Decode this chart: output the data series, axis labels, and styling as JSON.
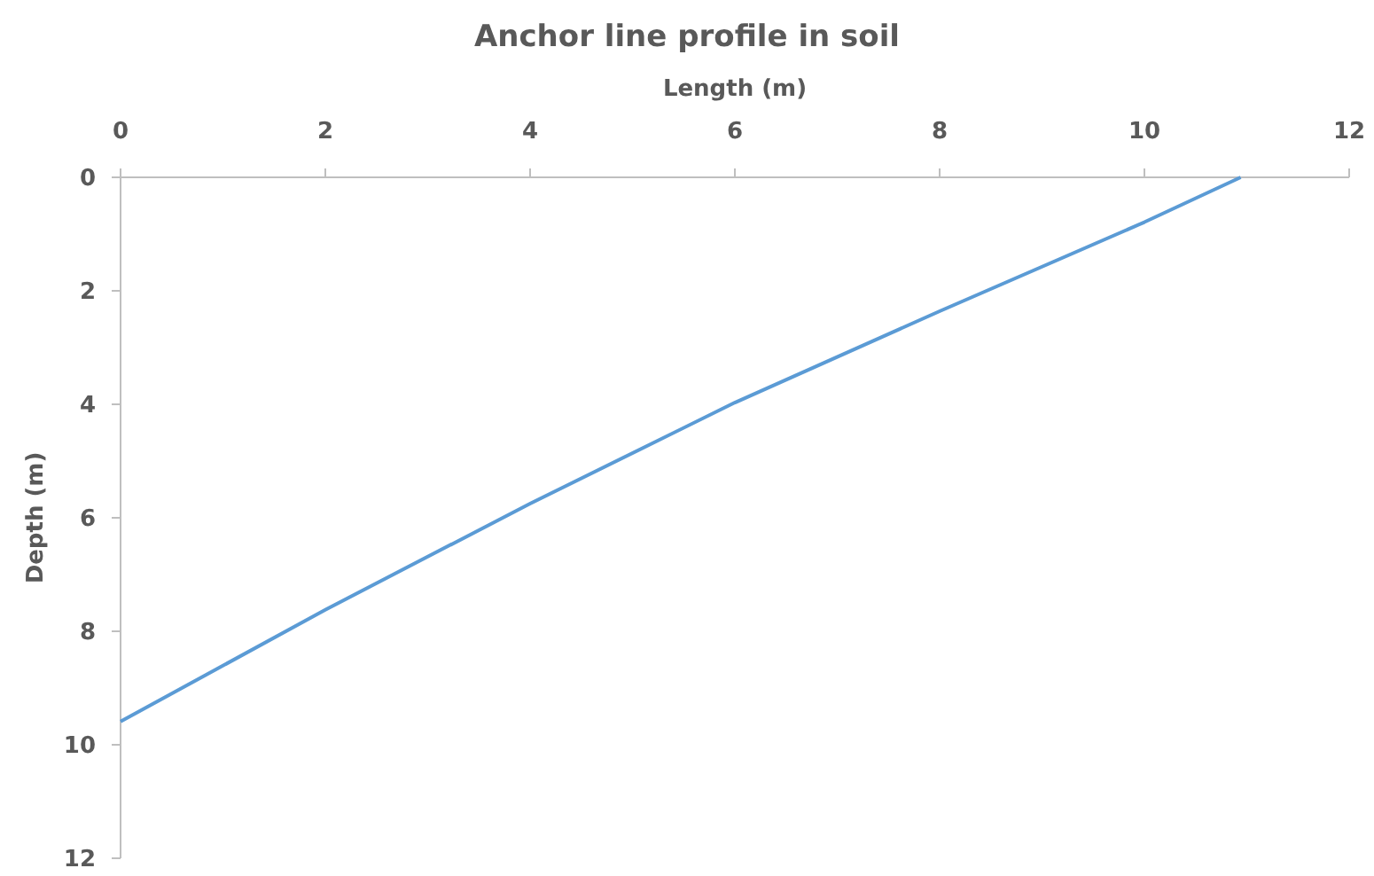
{
  "chart_data": {
    "type": "line",
    "title": "Anchor line profile in soil",
    "xlabel": "Length (m)",
    "ylabel": "Depth (m)",
    "x": [
      0,
      2,
      4,
      6,
      8,
      10,
      10.94
    ],
    "series": [
      {
        "color": "#5b9bd5",
        "values": [
          9.59,
          7.62,
          5.75,
          3.97,
          2.36,
          0.79,
          0
        ]
      }
    ],
    "xlim": [
      0,
      12
    ],
    "xticks": [
      0,
      2,
      4,
      6,
      8,
      10,
      12
    ],
    "ylim": [
      12,
      0
    ],
    "yticks": [
      0,
      2,
      4,
      6,
      8,
      10,
      12
    ],
    "grid": false,
    "marker": "none",
    "line_style": "solid"
  }
}
